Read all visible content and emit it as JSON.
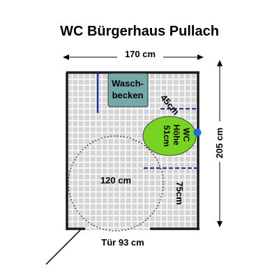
{
  "title": "WC Bürgerhaus Pullach",
  "dimensions": {
    "width": "170 cm",
    "depth": "205 cm",
    "door": "Tür 93 cm",
    "turning_circle": "120 cm",
    "sink_gap": "45cm",
    "side_clearance": "75cm"
  },
  "fixtures": {
    "sink_line1": "Wasch-",
    "sink_line2": "becken",
    "wc_line1": "WC",
    "wc_line2": "Höhe",
    "wc_line3": "51cm"
  },
  "colors": {
    "tile": "#d4d4d4",
    "grout": "#ffffff",
    "wall": "#1a1a1a",
    "sink": "#74a9aa",
    "wc": "#77d422",
    "grab_bar": "#1c2fa0",
    "flush_button": "#1e6ce0"
  }
}
